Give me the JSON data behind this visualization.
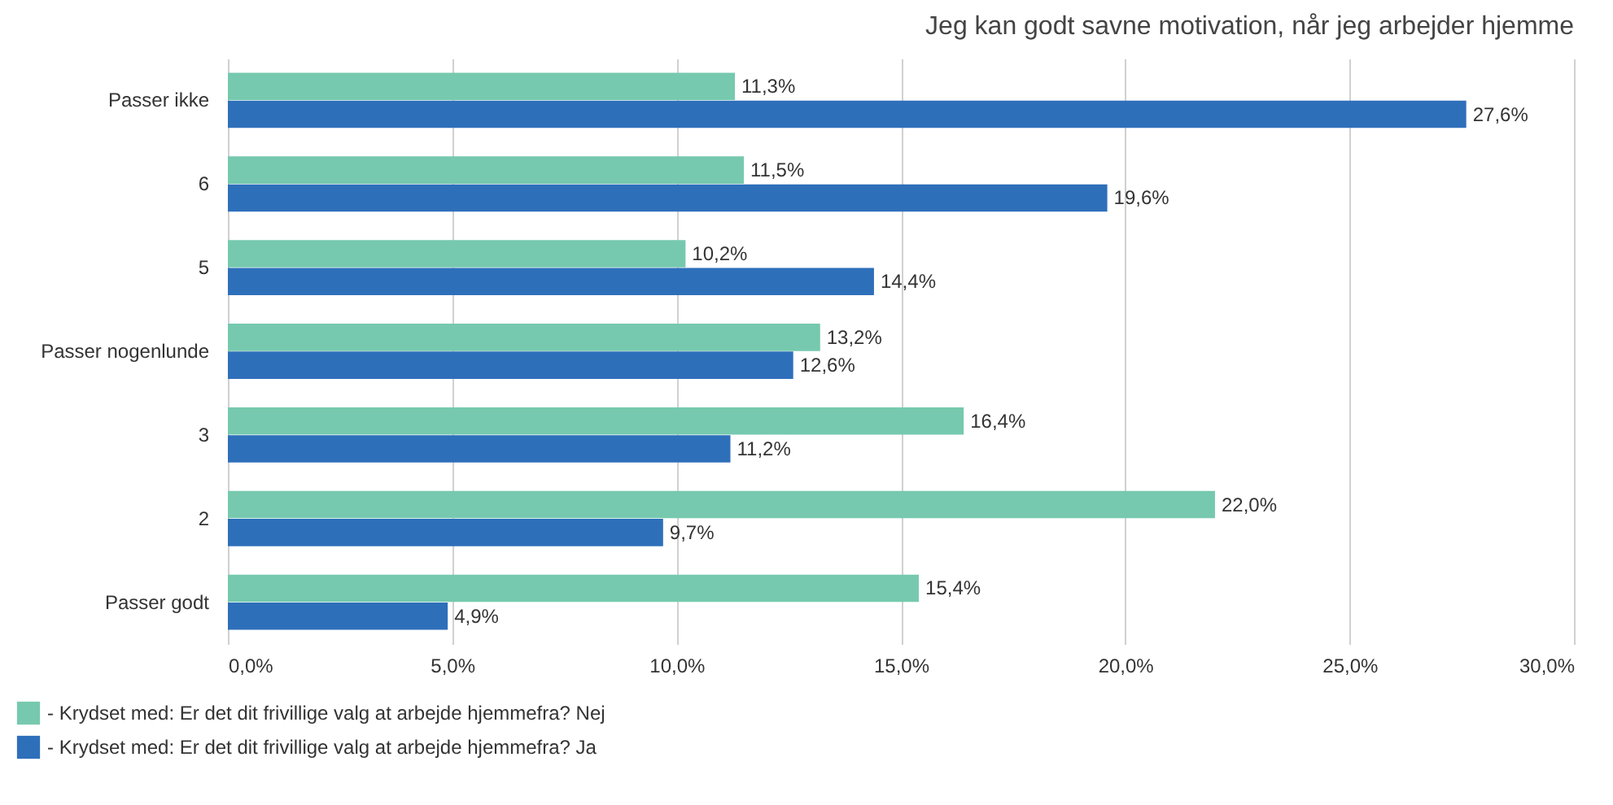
{
  "chart_data": {
    "type": "bar",
    "orientation": "horizontal",
    "title": "Jeg kan godt savne motivation, når jeg arbejder hjemme",
    "categories": [
      "Passer ikke",
      "6",
      "5",
      "Passer nogenlunde",
      "3",
      "2",
      "Passer godt"
    ],
    "series": [
      {
        "name": "- Krydset med: Er det dit frivillige valg at arbejde hjemmefra? Nej",
        "color": "#76c9ae",
        "values": [
          11.3,
          11.5,
          10.2,
          13.2,
          16.4,
          22.0,
          15.4
        ],
        "value_labels": [
          "11,3%",
          "11,5%",
          "10,2%",
          "13,2%",
          "16,4%",
          "22,0%",
          "15,4%"
        ]
      },
      {
        "name": "- Krydset med: Er det dit frivillige valg at arbejde hjemmefra? Ja",
        "color": "#2e6fba",
        "values": [
          27.6,
          19.6,
          14.4,
          12.6,
          11.2,
          9.7,
          4.9
        ],
        "value_labels": [
          "27,6%",
          "19,6%",
          "14,4%",
          "12,6%",
          "11,2%",
          "9,7%",
          "4,9%"
        ]
      }
    ],
    "xlim": [
      0,
      30
    ],
    "xticks": [
      {
        "value": 0,
        "label": "0,0%"
      },
      {
        "value": 5,
        "label": "5,0%"
      },
      {
        "value": 10,
        "label": "10,0%"
      },
      {
        "value": 15,
        "label": "15,0%"
      },
      {
        "value": 20,
        "label": "20,0%"
      },
      {
        "value": 25,
        "label": "25,0%"
      },
      {
        "value": 30,
        "label": "30,0%"
      }
    ],
    "grid": "x",
    "legend": "bottom left"
  }
}
